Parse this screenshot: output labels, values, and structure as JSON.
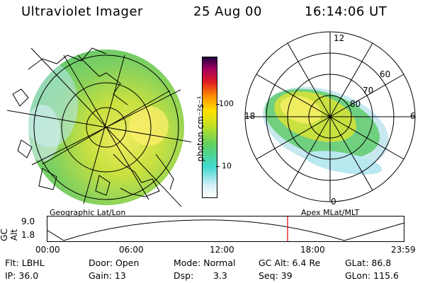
{
  "header": {
    "instrument": "Ultraviolet Imager",
    "date": "25 Aug 00",
    "time": "16:14:06 UT"
  },
  "left_panel": {
    "caption": "Geographic Lat/Lon"
  },
  "right_panel": {
    "caption": "Apex MLat/MLT",
    "mlt_labels": [
      "12",
      "18",
      "6",
      "0"
    ],
    "mlat_labels": [
      "60",
      "70",
      "80"
    ]
  },
  "colorbar": {
    "unit_label": "photon cm⁻²s⁻¹",
    "ticks": [
      "100",
      "10"
    ],
    "scale": "log",
    "colors": [
      "#ffffff",
      "#d8f0f8",
      "#40d8d0",
      "#60d060",
      "#c8e020",
      "#ffe000",
      "#ff9000",
      "#e02020",
      "#a00060",
      "#200040"
    ]
  },
  "altitude_track": {
    "ylabel": "GC Alt",
    "y_ticks": [
      "9.0",
      "1.8"
    ],
    "x_ticks": [
      "00:00",
      "06:00",
      "12:00",
      "18:00",
      "23:59"
    ],
    "marker_time": "16:14",
    "marker_color": "#e00000"
  },
  "footer": {
    "flt": "Flt: LBHL",
    "ip": "IP: 36.0",
    "door": "Door: Open",
    "gain": "Gain: 13",
    "mode": "Mode: Normal",
    "dsp_label": "Dsp:",
    "dsp_value": "3.3",
    "gc_alt": "GC Alt: 6.4 Re",
    "seq": "Seq: 39",
    "glat": "GLat: 86.8",
    "glon": "GLon: 115.6"
  }
}
